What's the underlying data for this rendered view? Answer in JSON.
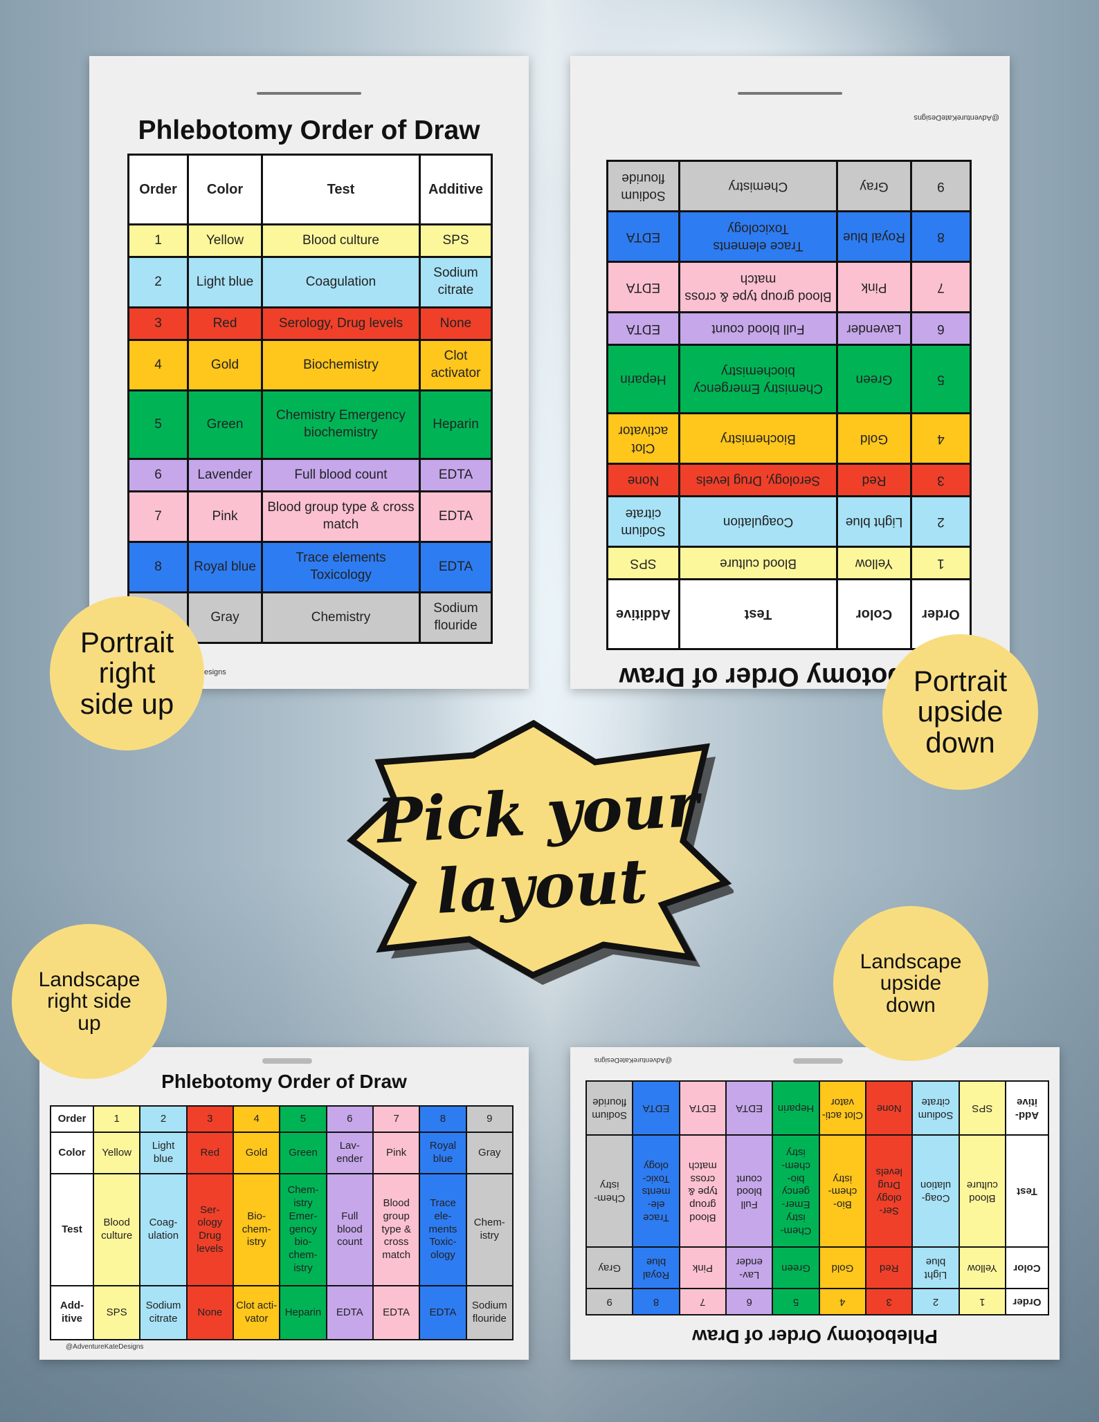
{
  "title": "Phlebotomy Order of Draw",
  "credit": "@AdventureKateDesigns",
  "credit_partial": "esigns",
  "badge": "Pick your\nlayout",
  "labels": {
    "portrait_up": "Portrait\nright\nside up",
    "portrait_down": "Portrait\nupside\ndown",
    "landscape_up": "Landscape\nright side\nup",
    "landscape_down": "Landscape\nupside\ndown"
  },
  "portrait": {
    "headers": [
      "Order",
      "Color",
      "Test",
      "Additive"
    ],
    "rows": [
      {
        "order": "1",
        "color": "Yellow",
        "test": "Blood culture",
        "additive": "SPS",
        "swatch": "yellow"
      },
      {
        "order": "2",
        "color": "Light blue",
        "test": "Coagulation",
        "additive": "Sodium citrate",
        "swatch": "lightblue"
      },
      {
        "order": "3",
        "color": "Red",
        "test": "Serology, Drug levels",
        "additive": "None",
        "swatch": "red"
      },
      {
        "order": "4",
        "color": "Gold",
        "test": "Biochemistry",
        "additive": "Clot activator",
        "swatch": "gold"
      },
      {
        "order": "5",
        "color": "Green",
        "test": "Chemistry Emergency biochemistry",
        "additive": "Heparin",
        "swatch": "green"
      },
      {
        "order": "6",
        "color": "Lavender",
        "test": "Full blood count",
        "additive": "EDTA",
        "swatch": "lavender"
      },
      {
        "order": "7",
        "color": "Pink",
        "test": "Blood group type & cross match",
        "additive": "EDTA",
        "swatch": "pink"
      },
      {
        "order": "8",
        "color": "Royal blue",
        "test": "Trace elements Toxicology",
        "additive": "EDTA",
        "swatch": "royal"
      },
      {
        "order": "9",
        "color": "Gray",
        "test": "Chemistry",
        "additive": "Sodium flouride",
        "swatch": "gray"
      }
    ]
  },
  "landscape": {
    "row_headers": [
      "Order",
      "Color",
      "Test",
      "Add-itive"
    ],
    "columns": [
      {
        "order": "1",
        "color": "Yellow",
        "test": "Blood culture",
        "additive": "SPS",
        "swatch": "yellow"
      },
      {
        "order": "2",
        "color": "Light blue",
        "test": "Coag-ulation",
        "additive": "Sodium citrate",
        "swatch": "lightblue"
      },
      {
        "order": "3",
        "color": "Red",
        "test": "Ser-ology Drug levels",
        "additive": "None",
        "swatch": "red"
      },
      {
        "order": "4",
        "color": "Gold",
        "test": "Bio-chem-istry",
        "additive": "Clot acti-vator",
        "swatch": "gold"
      },
      {
        "order": "5",
        "color": "Green",
        "test": "Chem-istry Emer-gency bio-chem-istry",
        "additive": "Heparin",
        "swatch": "green"
      },
      {
        "order": "6",
        "color": "Lav-ender",
        "test": "Full blood count",
        "additive": "EDTA",
        "swatch": "lavender"
      },
      {
        "order": "7",
        "color": "Pink",
        "test": "Blood group type & cross match",
        "additive": "EDTA",
        "swatch": "pink"
      },
      {
        "order": "8",
        "color": "Royal blue",
        "test": "Trace ele-ments Toxic-ology",
        "additive": "EDTA",
        "swatch": "royal"
      },
      {
        "order": "9",
        "color": "Gray",
        "test": "Chem-istry",
        "additive": "Sodium flouride",
        "swatch": "gray"
      }
    ]
  }
}
